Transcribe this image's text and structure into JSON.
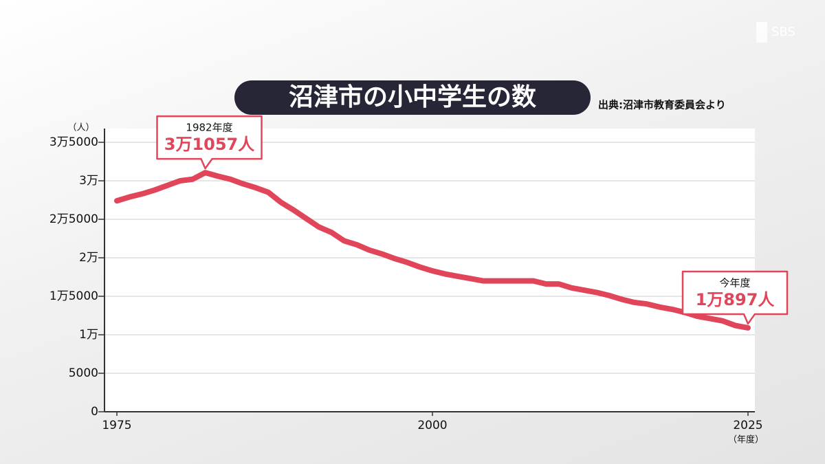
{
  "chart_data": {
    "type": "line",
    "title": "沼津市の小中学生の数",
    "source": "出典:沼津市教育委員会より",
    "logo": "SBS",
    "y_unit": "（人）",
    "x_unit": "（年度）",
    "xlim": [
      1975,
      2025
    ],
    "xticks": [
      1975,
      2000,
      2025
    ],
    "ylim": [
      0,
      35000
    ],
    "yticks": [
      0,
      5000,
      {
        "value": 10000,
        "label": "1万"
      },
      {
        "value": 15000,
        "label": "1万5000"
      },
      {
        "value": 20000,
        "label": "2万"
      },
      {
        "value": 25000,
        "label": "2万5000"
      },
      {
        "value": 30000,
        "label": "3万"
      },
      {
        "value": 35000,
        "label": "3万5000"
      }
    ],
    "grid": true,
    "x": [
      1975,
      1976,
      1977,
      1978,
      1979,
      1980,
      1981,
      1982,
      1983,
      1984,
      1985,
      1986,
      1987,
      1988,
      1989,
      1990,
      1991,
      1992,
      1993,
      1994,
      1995,
      1996,
      1997,
      1998,
      1999,
      2000,
      2001,
      2002,
      2003,
      2004,
      2005,
      2006,
      2007,
      2008,
      2009,
      2010,
      2011,
      2012,
      2013,
      2014,
      2015,
      2016,
      2017,
      2018,
      2019,
      2020,
      2021,
      2022,
      2023,
      2024,
      2025
    ],
    "series": [
      {
        "name": "小中学生の数",
        "color": "#e0455a",
        "values": [
          27400,
          27900,
          28300,
          28800,
          29400,
          30000,
          30200,
          31057,
          30600,
          30200,
          29600,
          29100,
          28500,
          27200,
          26200,
          25100,
          24000,
          23300,
          22200,
          21700,
          21000,
          20500,
          19900,
          19400,
          18800,
          18300,
          17900,
          17600,
          17300,
          17000,
          17000,
          17000,
          17000,
          17000,
          16600,
          16600,
          16100,
          15800,
          15500,
          15100,
          14600,
          14200,
          14000,
          13600,
          13300,
          12900,
          12400,
          12100,
          11800,
          11200,
          10897
        ]
      }
    ],
    "annotations": [
      {
        "x": 1982,
        "label": "1982年度",
        "value": 31057,
        "value_label": "3万1057人"
      },
      {
        "x": 2025,
        "label": "今年度",
        "value": 10897,
        "value_label": "1万897人"
      }
    ]
  }
}
